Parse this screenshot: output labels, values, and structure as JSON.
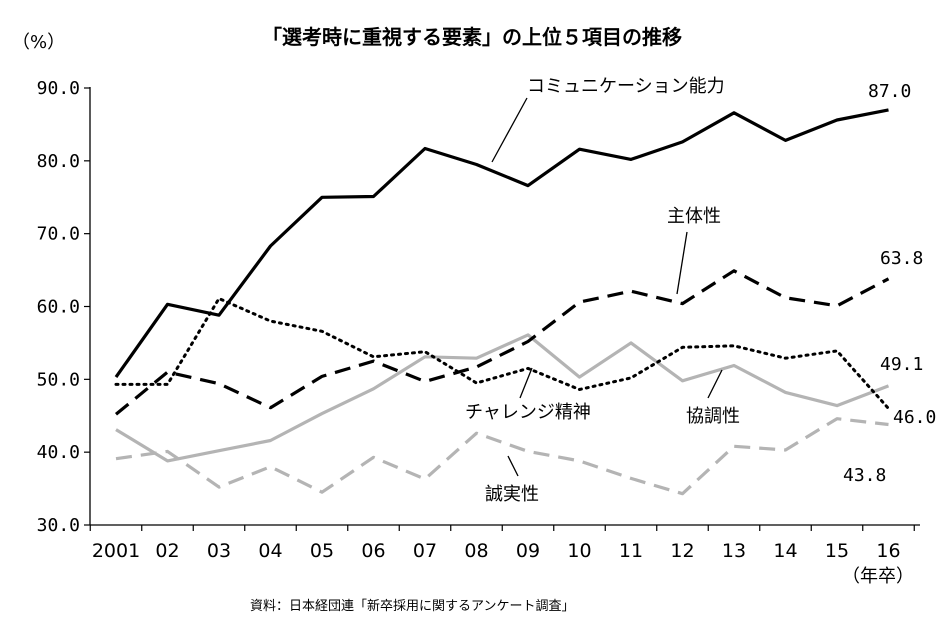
{
  "chart_data": {
    "type": "line",
    "title": "「選考時に重視する要素」の上位５項目の推移",
    "ylabel": "（%）",
    "xlabel": "（年卒）",
    "source": "資料：日本経団連「新卒採用に関するアンケート調査」",
    "ylim": [
      30,
      90
    ],
    "yticks": [
      "30.0",
      "40.0",
      "50.0",
      "60.0",
      "70.0",
      "80.0",
      "90.0"
    ],
    "categories": [
      "2001",
      "02",
      "03",
      "04",
      "05",
      "06",
      "07",
      "08",
      "09",
      "10",
      "11",
      "12",
      "13",
      "14",
      "15",
      "16"
    ],
    "grid": false,
    "series": [
      {
        "name": "コミュニケーション能力",
        "color": "#000000",
        "style": "solid",
        "values": [
          50.3,
          60.3,
          58.8,
          68.3,
          75.0,
          75.1,
          81.7,
          79.5,
          76.6,
          81.6,
          80.2,
          82.6,
          86.6,
          82.8,
          85.6,
          87.0
        ]
      },
      {
        "name": "主体性",
        "color": "#000000",
        "style": "dashed",
        "values": [
          45.2,
          51.0,
          49.4,
          46.1,
          50.4,
          52.5,
          49.7,
          51.7,
          55.2,
          60.6,
          62.1,
          60.4,
          64.9,
          61.2,
          60.1,
          63.8
        ]
      },
      {
        "name": "チャレンジ精神",
        "color": "#000000",
        "style": "dotted",
        "values": [
          49.3,
          49.3,
          61.1,
          58.0,
          56.6,
          53.1,
          53.8,
          49.5,
          51.5,
          48.6,
          50.2,
          54.4,
          54.6,
          52.9,
          53.9,
          46.0
        ]
      },
      {
        "name": "協調性",
        "color": "#b4b4b4",
        "style": "solid",
        "values": [
          43.1,
          38.8,
          40.2,
          41.6,
          45.3,
          48.7,
          53.1,
          52.9,
          56.1,
          50.3,
          55.0,
          49.8,
          51.9,
          48.2,
          46.4,
          49.1
        ]
      },
      {
        "name": "誠実性",
        "color": "#b4b4b4",
        "style": "dashed",
        "values": [
          39.1,
          40.1,
          35.2,
          38.0,
          34.5,
          39.3,
          36.3,
          42.6,
          40.1,
          38.8,
          36.4,
          34.3,
          40.8,
          40.3,
          44.6,
          43.8
        ]
      }
    ],
    "end_labels": [
      "87.0",
      "63.8",
      "46.0",
      "49.1",
      "43.8"
    ]
  }
}
